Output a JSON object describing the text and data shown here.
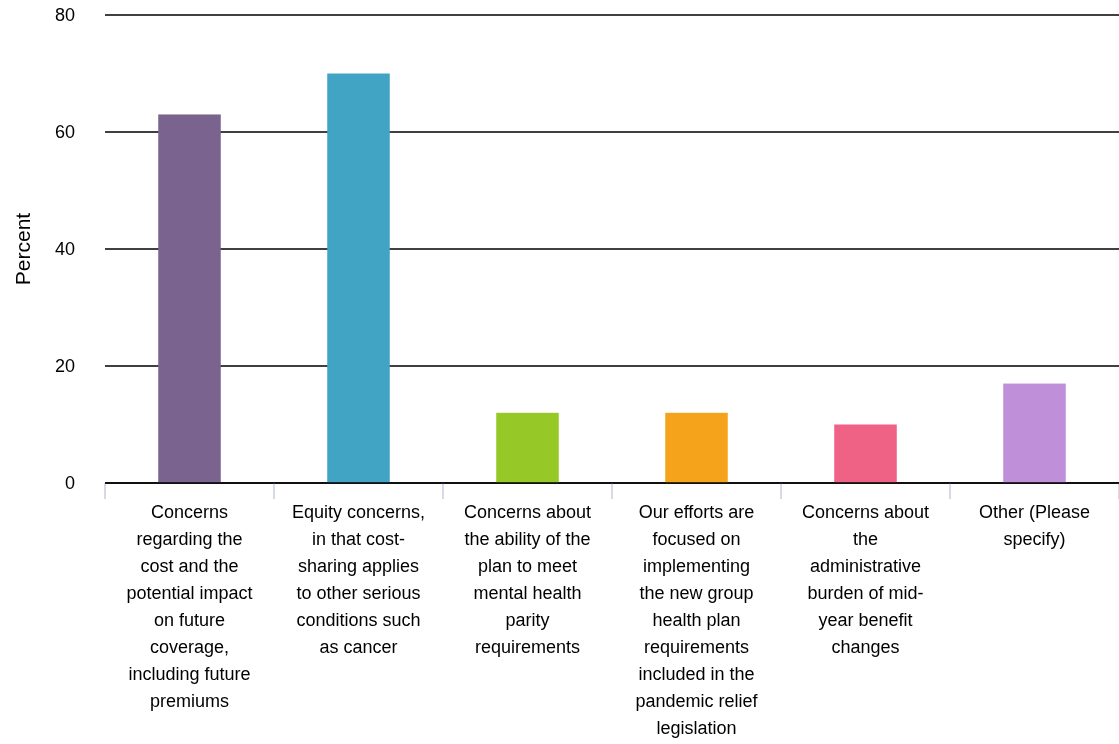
{
  "chart_data": {
    "type": "bar",
    "ylabel": "Percent",
    "categories": [
      "Concerns regarding the cost and the potential impact on future coverage, including future premiums",
      "Equity concerns, in that cost-sharing applies to other serious conditions such as cancer",
      "Concerns about the ability of the plan to meet mental health parity requirements",
      "Our efforts are focused on implementing the new group health plan requirements included in the pandemic relief legislation",
      "Concerns about the administrative burden of mid-year benefit changes",
      "Other (Please specify)"
    ],
    "values": [
      63,
      70,
      12,
      12,
      10,
      17
    ],
    "colors": [
      "#7b6390",
      "#41a4c4",
      "#96c928",
      "#f5a31a",
      "#ef6285",
      "#bf90d9"
    ],
    "ylim": [
      0,
      80
    ],
    "yticks": [
      0,
      20,
      40,
      60,
      80
    ],
    "grid": "y"
  }
}
